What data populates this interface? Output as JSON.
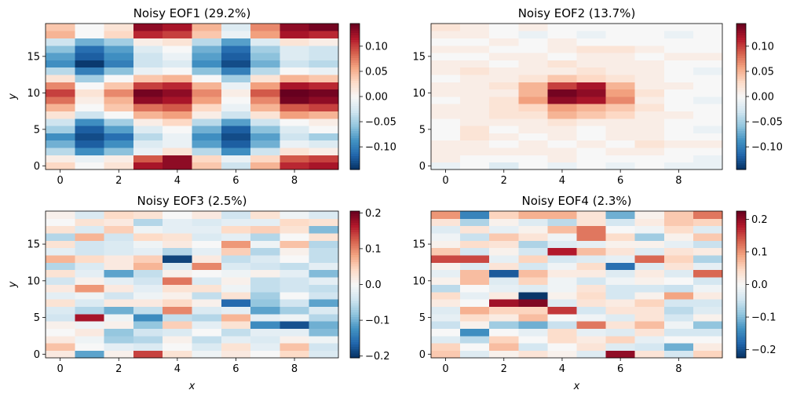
{
  "colormap": {
    "name": "RdBu_r",
    "stops": [
      "#053061",
      "#2166ac",
      "#4393c3",
      "#92c5de",
      "#d1e5f0",
      "#f7f7f7",
      "#fddbc7",
      "#f4a582",
      "#d6604d",
      "#b2182b",
      "#67001f"
    ]
  },
  "chart_data": [
    {
      "type": "heatmap",
      "title": "Noisy EOF1 (29.2%)",
      "xlabel": "",
      "ylabel": "y",
      "xticks": [
        "0",
        "2",
        "4",
        "6",
        "8"
      ],
      "yticks": [
        "0",
        "5",
        "10",
        "15"
      ],
      "vlim": [
        -0.145,
        0.145
      ],
      "cbar_ticks": [
        -0.1,
        -0.05,
        0.0,
        0.05,
        0.1
      ],
      "cbar_tick_labels": [
        "−0.10",
        "−0.05",
        "0.00",
        "0.05",
        "0.10"
      ],
      "values": [
        [
          0.03,
          0.0,
          0.02,
          0.12,
          0.13,
          0.04,
          -0.03,
          0.05,
          0.11,
          0.12
        ],
        [
          0.01,
          -0.01,
          0.01,
          0.09,
          0.13,
          0.03,
          -0.01,
          0.03,
          0.09,
          0.1
        ],
        [
          -0.04,
          -0.09,
          -0.06,
          -0.01,
          0.02,
          -0.04,
          -0.09,
          -0.03,
          0.02,
          0.01
        ],
        [
          -0.07,
          -0.12,
          -0.09,
          -0.02,
          -0.01,
          -0.08,
          -0.12,
          -0.07,
          -0.01,
          -0.02
        ],
        [
          -0.09,
          -0.13,
          -0.11,
          -0.04,
          -0.01,
          -0.09,
          -0.13,
          -0.08,
          -0.03,
          -0.05
        ],
        [
          -0.05,
          -0.12,
          -0.08,
          -0.02,
          0.0,
          -0.07,
          -0.12,
          -0.06,
          -0.02,
          0.0
        ],
        [
          -0.03,
          -0.09,
          -0.05,
          0.01,
          0.03,
          -0.04,
          -0.08,
          -0.03,
          0.0,
          0.01
        ],
        [
          0.02,
          -0.03,
          0.0,
          0.05,
          0.06,
          0.01,
          -0.03,
          0.02,
          0.06,
          0.05
        ],
        [
          0.05,
          0.0,
          0.04,
          0.08,
          0.09,
          0.03,
          -0.01,
          0.05,
          0.09,
          0.1
        ],
        [
          0.08,
          0.01,
          0.05,
          0.13,
          0.12,
          0.06,
          0.0,
          0.07,
          0.14,
          0.13
        ],
        [
          0.1,
          0.02,
          0.07,
          0.14,
          0.13,
          0.07,
          0.01,
          0.09,
          0.15,
          0.14
        ],
        [
          0.07,
          0.0,
          0.04,
          0.1,
          0.11,
          0.05,
          -0.01,
          0.06,
          0.12,
          0.11
        ],
        [
          0.02,
          -0.05,
          0.0,
          0.04,
          0.05,
          0.0,
          -0.05,
          0.02,
          0.05,
          0.04
        ],
        [
          -0.04,
          -0.1,
          -0.06,
          -0.01,
          0.0,
          -0.06,
          -0.1,
          -0.04,
          0.0,
          -0.01
        ],
        [
          -0.09,
          -0.14,
          -0.1,
          -0.03,
          -0.02,
          -0.09,
          -0.13,
          -0.07,
          -0.03,
          -0.04
        ],
        [
          -0.08,
          -0.12,
          -0.09,
          -0.03,
          -0.01,
          -0.08,
          -0.12,
          -0.06,
          -0.02,
          -0.03
        ],
        [
          -0.06,
          -0.11,
          -0.08,
          -0.02,
          0.0,
          -0.07,
          -0.11,
          -0.05,
          -0.02,
          -0.03
        ],
        [
          -0.03,
          -0.07,
          -0.05,
          0.01,
          0.02,
          -0.04,
          -0.08,
          -0.02,
          0.02,
          0.01
        ],
        [
          0.05,
          0.0,
          0.03,
          0.11,
          0.1,
          0.04,
          -0.01,
          0.06,
          0.12,
          0.11
        ],
        [
          0.04,
          0.0,
          0.02,
          0.13,
          0.12,
          0.05,
          -0.02,
          0.07,
          0.13,
          0.14
        ]
      ]
    },
    {
      "type": "heatmap",
      "title": "Noisy EOF2 (13.7%)",
      "xlabel": "",
      "ylabel": "",
      "xticks": [
        "0",
        "2",
        "4",
        "6",
        "8"
      ],
      "yticks": [
        "0",
        "5",
        "10",
        "15"
      ],
      "vlim": [
        -0.145,
        0.145
      ],
      "cbar_ticks": [
        -0.1,
        -0.05,
        0.0,
        0.05,
        0.1
      ],
      "cbar_tick_labels": [
        "−0.10",
        "−0.05",
        "0.00",
        "0.05",
        "0.10"
      ],
      "values": [
        [
          -0.01,
          0.0,
          -0.02,
          0.0,
          -0.01,
          0.0,
          -0.01,
          0.0,
          -0.01,
          -0.01
        ],
        [
          0.01,
          0.0,
          0.0,
          0.0,
          0.01,
          0.0,
          0.0,
          0.0,
          0.0,
          -0.01
        ],
        [
          0.01,
          0.01,
          0.01,
          0.01,
          0.01,
          0.0,
          0.01,
          0.01,
          0.0,
          0.0
        ],
        [
          0.01,
          0.01,
          0.0,
          0.01,
          0.0,
          0.01,
          0.0,
          0.02,
          0.01,
          0.01
        ],
        [
          0.0,
          0.02,
          0.01,
          0.0,
          0.01,
          0.0,
          0.01,
          0.01,
          0.0,
          0.0
        ],
        [
          0.0,
          0.02,
          0.0,
          0.01,
          0.01,
          0.0,
          0.01,
          0.01,
          0.0,
          -0.01
        ],
        [
          0.0,
          0.01,
          0.01,
          0.01,
          0.02,
          0.01,
          0.01,
          0.01,
          0.0,
          0.0
        ],
        [
          0.01,
          0.01,
          0.02,
          0.02,
          0.05,
          0.04,
          0.03,
          0.01,
          0.01,
          0.0
        ],
        [
          0.01,
          0.01,
          0.02,
          0.03,
          0.06,
          0.05,
          0.04,
          0.02,
          0.0,
          0.0
        ],
        [
          0.0,
          0.01,
          0.02,
          0.06,
          0.13,
          0.12,
          0.07,
          0.01,
          0.0,
          -0.01
        ],
        [
          0.01,
          0.01,
          0.01,
          0.05,
          0.14,
          0.13,
          0.06,
          0.02,
          0.0,
          0.0
        ],
        [
          0.01,
          0.01,
          0.02,
          0.05,
          0.1,
          0.12,
          0.05,
          0.01,
          0.01,
          0.0
        ],
        [
          0.0,
          0.01,
          0.01,
          0.02,
          0.04,
          0.03,
          0.02,
          0.01,
          0.0,
          0.0
        ],
        [
          0.01,
          0.02,
          0.01,
          0.01,
          0.01,
          0.02,
          0.01,
          0.01,
          0.0,
          -0.01
        ],
        [
          0.01,
          0.01,
          0.0,
          0.01,
          0.02,
          0.01,
          0.01,
          0.01,
          0.0,
          0.0
        ],
        [
          0.0,
          0.0,
          0.01,
          0.01,
          0.0,
          0.01,
          0.01,
          0.0,
          0.01,
          0.01
        ],
        [
          0.01,
          0.01,
          0.0,
          0.0,
          0.01,
          0.02,
          0.02,
          0.01,
          0.0,
          0.0
        ],
        [
          0.0,
          0.0,
          0.01,
          0.0,
          0.01,
          0.0,
          0.0,
          0.0,
          0.0,
          0.0
        ],
        [
          0.01,
          0.01,
          0.0,
          -0.01,
          0.0,
          -0.01,
          0.0,
          0.0,
          -0.01,
          0.0
        ],
        [
          0.02,
          0.01,
          0.0,
          0.01,
          0.0,
          0.0,
          0.0,
          0.0,
          0.0,
          0.0
        ]
      ]
    },
    {
      "type": "heatmap",
      "title": "Noisy EOF3 (2.5%)",
      "xlabel": "x",
      "ylabel": "y",
      "xticks": [
        "0",
        "2",
        "4",
        "6",
        "8"
      ],
      "yticks": [
        "0",
        "5",
        "10",
        "15"
      ],
      "vlim": [
        -0.205,
        0.205
      ],
      "cbar_ticks": [
        -0.2,
        -0.1,
        0.0,
        0.1,
        0.2
      ],
      "cbar_tick_labels": [
        "−0.2",
        "−0.1",
        "0.0",
        "0.1",
        "0.2"
      ],
      "values": [
        [
          0.02,
          -0.11,
          0.01,
          0.14,
          0.03,
          -0.01,
          0.02,
          0.0,
          0.04,
          -0.03
        ],
        [
          0.06,
          0.0,
          -0.02,
          -0.03,
          0.0,
          -0.03,
          0.03,
          -0.02,
          0.06,
          -0.04
        ],
        [
          0.02,
          -0.01,
          -0.07,
          -0.06,
          0.01,
          -0.05,
          -0.02,
          -0.03,
          0.01,
          -0.01
        ],
        [
          0.0,
          0.02,
          -0.08,
          -0.04,
          -0.03,
          0.0,
          -0.05,
          -0.02,
          -0.02,
          -0.09
        ],
        [
          0.01,
          -0.01,
          0.01,
          -0.08,
          0.05,
          -0.02,
          0.03,
          -0.13,
          -0.18,
          -0.1
        ],
        [
          -0.04,
          0.17,
          -0.01,
          -0.13,
          -0.05,
          -0.06,
          0.07,
          -0.02,
          -0.01,
          -0.06
        ],
        [
          -0.03,
          -0.06,
          -0.1,
          -0.05,
          0.1,
          -0.03,
          -0.02,
          -0.11,
          -0.07,
          -0.03
        ],
        [
          0.03,
          -0.03,
          0.02,
          0.02,
          0.04,
          0.01,
          -0.16,
          -0.08,
          -0.04,
          -0.11
        ],
        [
          -0.02,
          -0.01,
          -0.04,
          -0.01,
          0.01,
          -0.05,
          0.03,
          -0.07,
          0.0,
          -0.04
        ],
        [
          0.02,
          0.09,
          0.02,
          -0.02,
          0.03,
          0.03,
          -0.01,
          -0.05,
          -0.04,
          -0.05
        ],
        [
          -0.04,
          0.01,
          -0.02,
          -0.04,
          0.11,
          -0.03,
          0.01,
          -0.05,
          -0.04,
          -0.02
        ],
        [
          0.03,
          -0.02,
          -0.11,
          -0.05,
          0.01,
          0.0,
          -0.01,
          0.01,
          -0.02,
          -0.09
        ],
        [
          -0.06,
          -0.03,
          0.02,
          0.07,
          -0.03,
          0.1,
          -0.03,
          -0.04,
          -0.05,
          -0.02
        ],
        [
          0.07,
          0.04,
          0.02,
          0.05,
          -0.19,
          0.02,
          -0.05,
          -0.03,
          0.0,
          -0.05
        ],
        [
          -0.02,
          -0.04,
          -0.03,
          -0.02,
          -0.06,
          -0.02,
          0.05,
          -0.06,
          0.01,
          -0.05
        ],
        [
          0.03,
          -0.04,
          -0.03,
          -0.01,
          0.02,
          0.0,
          0.09,
          -0.01,
          0.06,
          -0.06
        ],
        [
          -0.06,
          0.07,
          -0.04,
          0.04,
          0.03,
          -0.03,
          -0.02,
          -0.06,
          0.0,
          0.03
        ],
        [
          0.03,
          -0.03,
          0.05,
          -0.01,
          -0.02,
          -0.02,
          0.04,
          0.05,
          0.03,
          -0.09
        ],
        [
          0.0,
          0.03,
          0.02,
          -0.06,
          -0.02,
          -0.03,
          -0.02,
          -0.02,
          0.04,
          0.03
        ],
        [
          0.01,
          -0.03,
          0.04,
          0.03,
          0.0,
          0.02,
          -0.04,
          0.03,
          -0.01,
          -0.03
        ]
      ]
    },
    {
      "type": "heatmap",
      "title": "Noisy EOF4 (2.3%)",
      "xlabel": "x",
      "ylabel": "",
      "xticks": [
        "0",
        "2",
        "4",
        "6",
        "8"
      ],
      "yticks": [
        "0",
        "5",
        "10",
        "15"
      ],
      "vlim": [
        -0.225,
        0.225
      ],
      "cbar_ticks": [
        -0.2,
        -0.1,
        0.0,
        0.1,
        0.2
      ],
      "cbar_tick_labels": [
        "−0.2",
        "−0.1",
        "0.0",
        "0.1",
        "0.2"
      ],
      "values": [
        [
          0.06,
          -0.03,
          0.01,
          0.03,
          0.01,
          -0.03,
          0.2,
          0.03,
          -0.04,
          0.05
        ],
        [
          0.05,
          0.0,
          0.07,
          -0.04,
          0.0,
          0.03,
          -0.03,
          -0.04,
          -0.11,
          0.02
        ],
        [
          -0.03,
          -0.06,
          0.05,
          0.0,
          0.04,
          0.02,
          0.05,
          -0.02,
          0.0,
          0.0
        ],
        [
          0.0,
          -0.14,
          0.0,
          -0.02,
          0.04,
          -0.02,
          -0.03,
          0.03,
          -0.04,
          -0.04
        ],
        [
          -0.05,
          0.01,
          -0.08,
          -0.11,
          -0.05,
          0.12,
          0.03,
          0.07,
          -0.01,
          -0.09
        ],
        [
          -0.02,
          0.04,
          0.02,
          0.07,
          0.0,
          -0.01,
          -0.03,
          0.03,
          -0.04,
          0.01
        ],
        [
          -0.03,
          0.08,
          0.05,
          0.05,
          0.16,
          -0.04,
          0.03,
          0.03,
          -0.06,
          -0.03
        ],
        [
          0.02,
          0.0,
          0.19,
          0.21,
          -0.03,
          0.03,
          0.02,
          0.05,
          -0.04,
          -0.04
        ],
        [
          0.04,
          -0.02,
          0.02,
          -0.22,
          0.01,
          0.04,
          -0.04,
          0.01,
          0.09,
          0.02
        ],
        [
          -0.06,
          0.0,
          -0.02,
          -0.03,
          -0.01,
          0.03,
          -0.04,
          -0.04,
          -0.05,
          -0.01
        ],
        [
          0.01,
          0.07,
          -0.03,
          0.05,
          -0.01,
          -0.04,
          -0.01,
          0.01,
          0.0,
          -0.04
        ],
        [
          -0.02,
          0.07,
          -0.19,
          0.07,
          0.02,
          0.02,
          -0.03,
          0.02,
          -0.03,
          0.13
        ],
        [
          0.01,
          -0.03,
          0.03,
          -0.04,
          -0.01,
          0.04,
          -0.17,
          -0.03,
          0.03,
          -0.02
        ],
        [
          0.15,
          0.15,
          -0.02,
          0.05,
          -0.04,
          -0.03,
          -0.02,
          0.13,
          0.05,
          -0.07
        ],
        [
          0.06,
          -0.04,
          0.01,
          -0.04,
          0.18,
          0.07,
          0.03,
          -0.03,
          0.03,
          0.02
        ],
        [
          0.01,
          0.04,
          0.03,
          -0.07,
          -0.03,
          -0.02,
          0.01,
          0.01,
          -0.02,
          -0.05
        ],
        [
          -0.01,
          -0.05,
          0.06,
          0.03,
          -0.01,
          0.12,
          0.04,
          -0.08,
          0.01,
          0.06
        ],
        [
          -0.03,
          0.03,
          -0.02,
          0.01,
          0.07,
          0.12,
          0.0,
          -0.01,
          0.04,
          -0.03
        ],
        [
          0.03,
          -0.07,
          0.01,
          -0.03,
          -0.06,
          0.03,
          -0.04,
          0.02,
          0.06,
          0.05
        ],
        [
          0.1,
          -0.15,
          0.05,
          0.08,
          0.08,
          0.03,
          -0.11,
          0.01,
          0.06,
          0.12
        ]
      ]
    }
  ]
}
